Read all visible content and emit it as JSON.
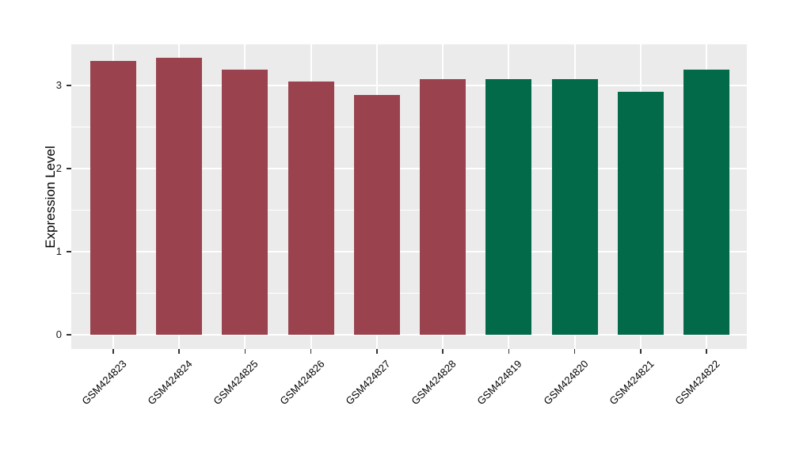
{
  "figure": {
    "background_color": "#FFFFFF",
    "panel_background_color": "#EBEBEB",
    "gridline_color": "#FFFFFF"
  },
  "y_axis": {
    "title": "Expression Level",
    "tick_labels": [
      "0",
      "1",
      "2",
      "3"
    ],
    "tick_values": [
      0,
      1,
      2,
      3
    ],
    "minor_tick_values": [
      0.5,
      1.5,
      2.5,
      3.5
    ]
  },
  "chart_data": {
    "type": "bar",
    "title": "",
    "xlabel": "",
    "ylabel": "Expression Level",
    "categories": [
      "GSM424823",
      "GSM424824",
      "GSM424825",
      "GSM424826",
      "GSM424827",
      "GSM424828",
      "GSM424819",
      "GSM424820",
      "GSM424821",
      "GSM424822"
    ],
    "values": [
      3.3,
      3.33,
      3.19,
      3.05,
      2.89,
      3.08,
      3.08,
      3.08,
      2.92,
      3.19
    ],
    "bar_colors": [
      "#9A434F",
      "#9A434F",
      "#9A434F",
      "#9A434F",
      "#9A434F",
      "#9A434F",
      "#026949",
      "#026949",
      "#026949",
      "#026949"
    ],
    "groups": [
      {
        "name": "maroon-group",
        "color": "#9A434F",
        "categories": [
          "GSM424823",
          "GSM424824",
          "GSM424825",
          "GSM424826",
          "GSM424827",
          "GSM424828"
        ]
      },
      {
        "name": "green-group",
        "color": "#026949",
        "categories": [
          "GSM424819",
          "GSM424820",
          "GSM424821",
          "GSM424822"
        ]
      }
    ],
    "ylim": [
      -0.17,
      3.51
    ],
    "yticks": [
      0,
      1,
      2,
      3
    ],
    "grid": "on",
    "legend": "none",
    "x_tick_rotation_deg": 45
  }
}
